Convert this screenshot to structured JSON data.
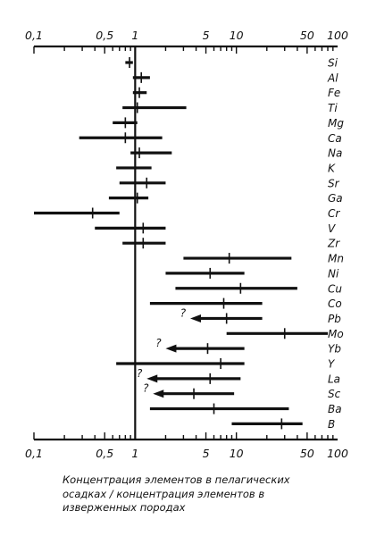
{
  "chart_data": {
    "type": "range",
    "x_scale": "log",
    "xlim": [
      0.1,
      100
    ],
    "x_ticks": [
      {
        "value": 0.1,
        "label": "0,1"
      },
      {
        "value": 0.5,
        "label": "0,5"
      },
      {
        "value": 1,
        "label": "1"
      },
      {
        "value": 5,
        "label": "5"
      },
      {
        "value": 10,
        "label": "10"
      },
      {
        "value": 50,
        "label": "50"
      },
      {
        "value": 100,
        "label": "100"
      }
    ],
    "reference_line": 1,
    "xlabel": "Концентрация элементов в пелагических осадках / концентрация элементов в изверженных породах",
    "rows": [
      {
        "element": "Si",
        "min": 0.8,
        "max": 0.95,
        "mark": 0.88
      },
      {
        "element": "Al",
        "min": 0.95,
        "max": 1.4,
        "mark": 1.15
      },
      {
        "element": "Fe",
        "min": 0.95,
        "max": 1.3,
        "mark": 1.1
      },
      {
        "element": "Ti",
        "min": 0.75,
        "max": 3.2,
        "mark": 1.05
      },
      {
        "element": "Mg",
        "min": 0.6,
        "max": 1.05,
        "mark": 0.8
      },
      {
        "element": "Ca",
        "min": 0.28,
        "max": 1.85,
        "mark": 0.8
      },
      {
        "element": "Na",
        "min": 0.9,
        "max": 2.3,
        "mark": 1.1
      },
      {
        "element": "K",
        "min": 0.65,
        "max": 1.45,
        "mark": 1.0
      },
      {
        "element": "Sr",
        "min": 0.7,
        "max": 2.0,
        "mark": 1.3
      },
      {
        "element": "Ga",
        "min": 0.55,
        "max": 1.35,
        "mark": 1.05
      },
      {
        "element": "Cr",
        "min": 0.1,
        "max": 0.7,
        "mark": 0.38
      },
      {
        "element": "V",
        "min": 0.4,
        "max": 2.0,
        "mark": 1.2
      },
      {
        "element": "Zr",
        "min": 0.75,
        "max": 2.0,
        "mark": 1.2
      },
      {
        "element": "Mn",
        "min": 3.0,
        "max": 35,
        "mark": 8.5
      },
      {
        "element": "Ni",
        "min": 2.0,
        "max": 12,
        "mark": 5.5
      },
      {
        "element": "Cu",
        "min": 2.5,
        "max": 40,
        "mark": 11
      },
      {
        "element": "Co",
        "min": 1.4,
        "max": 18,
        "mark": 7.5
      },
      {
        "element": "Pb",
        "min": 3.5,
        "max": 18,
        "mark": 8.0,
        "arrow_to": 3.5,
        "question_mark": true
      },
      {
        "element": "Mo",
        "min": 8.0,
        "max": 80,
        "mark": 30
      },
      {
        "element": "Yb",
        "min": 2.0,
        "max": 12,
        "mark": 5.2,
        "arrow_to": 2.0,
        "question_mark": true
      },
      {
        "element": "Y",
        "min": 0.65,
        "max": 12,
        "mark": 7.0
      },
      {
        "element": "La",
        "min": 1.3,
        "max": 11,
        "mark": 5.5,
        "arrow_to": 1.3,
        "question_mark": true
      },
      {
        "element": "Sc",
        "min": 1.5,
        "max": 9.5,
        "mark": 3.8,
        "arrow_to": 1.5,
        "question_mark": true
      },
      {
        "element": "Ba",
        "min": 1.4,
        "max": 33,
        "mark": 6.0
      },
      {
        "element": "B",
        "min": 9.0,
        "max": 45,
        "mark": 28
      }
    ],
    "question_label": "?",
    "grid": false,
    "legend": "none"
  }
}
